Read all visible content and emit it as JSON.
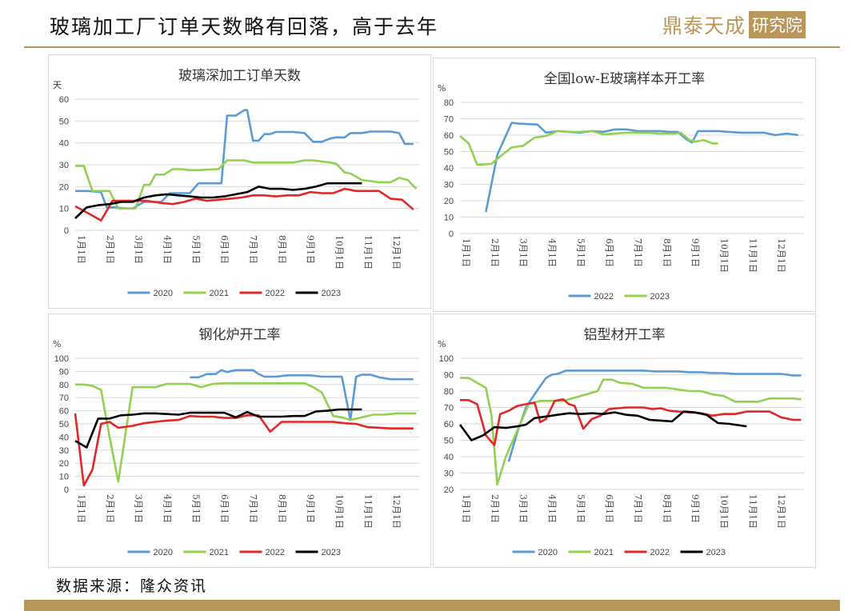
{
  "page": {
    "title": "玻璃加工厂订单天数略有回落，高于去年",
    "logo_text": "鼎泰天成",
    "logo_box": "研究院",
    "source": "数据来源：隆众资讯",
    "accent_color": "#b9975b"
  },
  "chart_data": [
    {
      "type": "line",
      "title": "玻璃深加工订单天数",
      "yunit": "天",
      "ylim": [
        0,
        60
      ],
      "yticks": [
        0,
        10,
        20,
        30,
        40,
        50,
        60
      ],
      "xmax": 12,
      "categories": [
        "1月1日",
        "2月1日",
        "3月1日",
        "4月1日",
        "5月1日",
        "6月1日",
        "7月1日",
        "8月1日",
        "9月1日",
        "10月1日",
        "11月1日",
        "12月1日"
      ],
      "grid": true,
      "legend": "bottom",
      "series": [
        {
          "name": "2020",
          "color": "#5b9bd5",
          "x": [
            0,
            0.45,
            0.9,
            1.1,
            1.4,
            1.8,
            2.0,
            2.4,
            2.8,
            3.0,
            3.3,
            3.6,
            4.0,
            4.3,
            4.6,
            5.0,
            5.1,
            5.3,
            5.6,
            5.9,
            6.0,
            6.2,
            6.4,
            6.6,
            6.8,
            7.0,
            7.3,
            7.6,
            8.0,
            8.3,
            8.6,
            8.9,
            9.1,
            9.4,
            9.6,
            10.0,
            10.3,
            10.6,
            11.0,
            11.3,
            11.5,
            11.8
          ],
          "y": [
            18,
            18,
            17.5,
            10.5,
            10.5,
            10,
            10,
            13,
            13,
            13,
            17,
            17,
            17,
            21.5,
            21.5,
            21.5,
            21.5,
            52.5,
            52.5,
            55,
            55,
            41,
            41,
            44,
            44,
            45,
            45,
            45,
            44.5,
            40.5,
            40.5,
            42,
            42.5,
            42.5,
            44.5,
            44.5,
            45.2,
            45.2,
            45.2,
            44.5,
            39.5,
            39.5
          ]
        },
        {
          "name": "2021",
          "color": "#92d050",
          "x": [
            0,
            0.3,
            0.6,
            0.9,
            1.2,
            1.5,
            1.8,
            2.1,
            2.4,
            2.6,
            2.8,
            3.1,
            3.4,
            3.7,
            4.0,
            4.3,
            4.6,
            5.0,
            5.3,
            5.6,
            5.9,
            6.2,
            6.5,
            6.8,
            7.2,
            7.6,
            8.0,
            8.3,
            8.6,
            8.9,
            9.1,
            9.4,
            9.6,
            10.0,
            10.3,
            10.6,
            11.0,
            11.3,
            11.6,
            11.9
          ],
          "y": [
            29.5,
            29.5,
            18,
            18,
            18,
            10,
            10,
            10,
            20.8,
            20.8,
            25.5,
            25.5,
            28,
            28,
            27.5,
            27.5,
            27.8,
            28,
            32,
            32,
            32,
            31,
            31,
            31,
            31,
            31,
            32,
            32,
            31.5,
            31,
            30.5,
            26.5,
            26,
            23,
            22.5,
            22,
            22,
            24,
            23,
            19
          ]
        },
        {
          "name": "2022",
          "color": "#e32726",
          "x": [
            0,
            0.5,
            0.9,
            1.3,
            1.6,
            2.0,
            2.5,
            3.0,
            3.4,
            3.8,
            4.2,
            4.6,
            5.0,
            5.4,
            5.8,
            6.2,
            6.6,
            7.0,
            7.4,
            7.8,
            8.2,
            8.6,
            9.0,
            9.4,
            9.8,
            10.2,
            10.6,
            11.0,
            11.4,
            11.8
          ],
          "y": [
            11,
            7.5,
            4.5,
            13.5,
            13.5,
            13.5,
            13.5,
            12.5,
            12,
            13,
            14.5,
            13.5,
            14,
            14.5,
            15,
            16,
            16,
            15.5,
            16,
            16,
            17.5,
            17,
            17,
            19,
            18,
            18,
            18,
            14.5,
            14,
            9.5
          ]
        },
        {
          "name": "2023",
          "color": "#000000",
          "x": [
            0,
            0.4,
            0.8,
            1.2,
            1.6,
            2.0,
            2.4,
            2.8,
            3.2,
            3.6,
            4.0,
            4.4,
            4.8,
            5.2,
            5.6,
            6.0,
            6.4,
            6.8,
            7.2,
            7.6,
            8.0,
            8.4,
            8.8,
            9.2,
            9.6,
            10.0
          ],
          "y": [
            5.5,
            10.5,
            11.5,
            12,
            13,
            13,
            15,
            16,
            16.5,
            16,
            15.5,
            15,
            15,
            15.5,
            16.5,
            17.5,
            20,
            19,
            19,
            18.5,
            19,
            20,
            21.5,
            21.5,
            21.5,
            21.5
          ]
        }
      ]
    },
    {
      "type": "line",
      "title": "全国low-E玻璃样本开工率",
      "yunit": "%",
      "ylim": [
        0,
        80
      ],
      "yticks": [
        0,
        10,
        20,
        30,
        40,
        50,
        60,
        70,
        80
      ],
      "xmax": 12,
      "categories": [
        "1月1日",
        "2月1日",
        "3月1日",
        "4月1日",
        "5月1日",
        "6月1日",
        "7月1日",
        "8月1日",
        "9月1日",
        "10月1日",
        "11月1日",
        "12月1日"
      ],
      "grid": true,
      "legend": "bottom",
      "series": [
        {
          "name": "2022",
          "color": "#5b9bd5",
          "x": [
            0.9,
            1.3,
            1.8,
            2.1,
            2.7,
            3.0,
            3.4,
            3.8,
            4.2,
            4.6,
            5.0,
            5.4,
            5.8,
            6.2,
            6.6,
            7.0,
            7.3,
            7.6,
            7.9,
            8.1,
            8.3,
            8.6,
            9.0,
            9.4,
            9.8,
            10.2,
            10.6,
            11.0,
            11.4,
            11.8
          ],
          "y": [
            13,
            48,
            67.5,
            67,
            66.5,
            61.5,
            62.5,
            62,
            61.5,
            62.5,
            62,
            63.5,
            63.5,
            62.5,
            62.5,
            62.5,
            62,
            62,
            57.5,
            55.5,
            62.5,
            62.5,
            62.5,
            62,
            61.5,
            61.5,
            61.5,
            60,
            61,
            60
          ]
        },
        {
          "name": "2023",
          "color": "#92d050",
          "x": [
            0,
            0.3,
            0.6,
            1.1,
            1.4,
            1.8,
            2.2,
            2.6,
            3.0,
            3.4,
            3.8,
            4.2,
            4.6,
            5.0,
            5.4,
            5.8,
            6.2,
            6.6,
            6.9,
            7.2,
            7.5,
            7.7,
            8.0,
            8.2,
            8.5,
            8.8,
            9.0
          ],
          "y": [
            59.5,
            55,
            42,
            42.5,
            47,
            52.5,
            53.5,
            58.5,
            59.5,
            62.5,
            62,
            62,
            62.5,
            60.5,
            61,
            61.5,
            61.5,
            61.5,
            61,
            61,
            61,
            61.5,
            57,
            56,
            57,
            55,
            55
          ]
        }
      ]
    },
    {
      "type": "line",
      "title": "钢化炉开工率",
      "yunit": "%",
      "ylim": [
        0,
        100
      ],
      "yticks": [
        0,
        10,
        20,
        30,
        40,
        50,
        60,
        70,
        80,
        90,
        100
      ],
      "xmax": 12,
      "categories": [
        "1月1日",
        "2月1日",
        "3月1日",
        "4月1日",
        "5月1日",
        "6月1日",
        "7月1日",
        "8月1日",
        "9月1日",
        "10月1日",
        "11月1日",
        "12月1日"
      ],
      "grid": true,
      "legend": "bottom",
      "series": [
        {
          "name": "2020",
          "color": "#5b9bd5",
          "x": [
            4.0,
            4.3,
            4.6,
            4.9,
            5.1,
            5.3,
            5.6,
            5.9,
            6.2,
            6.4,
            6.6,
            6.8,
            7.0,
            7.4,
            7.8,
            8.2,
            8.6,
            9.0,
            9.3,
            9.6,
            9.8,
            10.0,
            10.3,
            10.6,
            11.0,
            11.4,
            11.8
          ],
          "y": [
            85.5,
            85.5,
            88,
            88,
            91,
            89.5,
            91,
            91,
            91,
            88,
            86,
            86,
            86,
            87,
            87,
            87,
            86,
            86,
            86,
            53,
            86,
            87.5,
            87.5,
            85.5,
            84,
            84,
            84
          ]
        },
        {
          "name": "2021",
          "color": "#92d050",
          "x": [
            0,
            0.3,
            0.6,
            0.9,
            1.2,
            1.5,
            2.0,
            2.4,
            2.8,
            3.2,
            3.6,
            4.0,
            4.4,
            4.8,
            5.2,
            5.6,
            6.0,
            6.4,
            6.8,
            7.2,
            7.6,
            8.0,
            8.3,
            8.6,
            9.0,
            9.3,
            9.6,
            10.0,
            10.4,
            10.8,
            11.2,
            11.6,
            11.9
          ],
          "y": [
            80,
            80,
            79,
            76,
            40,
            6,
            78,
            78,
            78,
            80.5,
            80.5,
            80.5,
            78,
            80.5,
            81,
            81,
            81,
            81,
            81,
            81,
            81,
            81,
            78,
            74,
            56,
            55,
            53,
            55,
            57,
            57,
            58,
            58,
            58
          ]
        },
        {
          "name": "2022",
          "color": "#e32726",
          "x": [
            0,
            0.3,
            0.6,
            0.9,
            1.2,
            1.5,
            2.0,
            2.4,
            2.8,
            3.2,
            3.6,
            4.0,
            4.4,
            4.8,
            5.2,
            5.6,
            6.0,
            6.4,
            6.8,
            7.2,
            7.6,
            8.0,
            8.3,
            8.6,
            9.0,
            9.4,
            9.8,
            10.2,
            10.6,
            11.0,
            11.4,
            11.8
          ],
          "y": [
            58,
            3,
            15,
            50,
            51.5,
            47,
            48.5,
            50.5,
            51.5,
            52.5,
            53,
            56,
            55.5,
            55.5,
            54.5,
            54.5,
            56.5,
            56.5,
            44,
            51.5,
            51.5,
            51.5,
            51.5,
            51.5,
            51.5,
            50.5,
            50,
            47.5,
            47,
            46.5,
            46.5,
            46.5
          ]
        },
        {
          "name": "2023",
          "color": "#000000",
          "x": [
            0,
            0.4,
            0.8,
            1.2,
            1.6,
            2.0,
            2.4,
            2.8,
            3.2,
            3.6,
            4.0,
            4.4,
            4.8,
            5.2,
            5.6,
            6.0,
            6.4,
            6.8,
            7.2,
            7.6,
            8.0,
            8.4,
            8.8,
            9.2,
            9.6,
            10.0
          ],
          "y": [
            37,
            32,
            54,
            54,
            56.5,
            57,
            58,
            58,
            57.5,
            57,
            58.5,
            58.5,
            58.5,
            58.5,
            55,
            59,
            55.5,
            55.5,
            55.5,
            56,
            56,
            59.5,
            60,
            61,
            61,
            61
          ]
        }
      ]
    },
    {
      "type": "line",
      "title": "铝型材开工率",
      "yunit": "%",
      "ylim": [
        20,
        100
      ],
      "yticks": [
        20,
        30,
        40,
        50,
        60,
        70,
        80,
        90,
        100
      ],
      "xmax": 12,
      "categories": [
        "1月1日",
        "2月1日",
        "3月1日",
        "4月1日",
        "5月1日",
        "6月1日",
        "7月1日",
        "8月1日",
        "9月1日",
        "10月1日",
        "11月1日",
        "12月1日"
      ],
      "grid": true,
      "legend": "bottom",
      "series": [
        {
          "name": "2020",
          "color": "#5b9bd5",
          "x": [
            1.7,
            2.0,
            2.3,
            2.6,
            2.8,
            3.0,
            3.2,
            3.4,
            3.7,
            4.0,
            4.4,
            4.8,
            5.2,
            5.6,
            6.0,
            6.4,
            6.8,
            7.2,
            7.6,
            8.0,
            8.4,
            8.8,
            9.2,
            9.6,
            10.0,
            10.4,
            10.8,
            11.2,
            11.6,
            11.9
          ],
          "y": [
            37,
            55,
            70,
            78,
            83,
            88,
            90,
            90.5,
            92.5,
            92.5,
            92.5,
            92.5,
            92.5,
            92.5,
            92.5,
            92.5,
            92,
            92,
            92,
            91.5,
            91.5,
            91,
            91,
            90.5,
            90.5,
            90.5,
            90.5,
            90.5,
            89.5,
            89.5
          ]
        },
        {
          "name": "2021",
          "color": "#92d050",
          "x": [
            0,
            0.3,
            0.6,
            0.9,
            1.1,
            1.3,
            1.6,
            2.0,
            2.4,
            2.8,
            3.2,
            3.6,
            4.0,
            4.4,
            4.8,
            5.0,
            5.3,
            5.6,
            6.0,
            6.4,
            6.8,
            7.2,
            7.6,
            8.0,
            8.4,
            8.8,
            9.2,
            9.6,
            10.0,
            10.4,
            10.8,
            11.2,
            11.6,
            11.9
          ],
          "y": [
            88,
            88,
            85,
            82,
            65,
            23,
            40,
            56,
            72,
            74,
            74,
            74,
            76,
            78,
            80,
            87,
            87,
            85,
            84.5,
            82,
            82,
            82,
            81,
            80,
            80,
            78,
            77,
            73.5,
            73.5,
            73.5,
            75.5,
            75.5,
            75.5,
            75
          ]
        },
        {
          "name": "2022",
          "color": "#e32726",
          "x": [
            0,
            0.3,
            0.6,
            0.9,
            1.2,
            1.4,
            1.7,
            2.0,
            2.3,
            2.6,
            2.8,
            3.0,
            3.3,
            3.6,
            3.8,
            4.0,
            4.3,
            4.6,
            4.9,
            5.2,
            5.5,
            5.8,
            6.1,
            6.4,
            6.7,
            7.0,
            7.3,
            7.6,
            8.0,
            8.4,
            8.8,
            9.2,
            9.6,
            10.0,
            10.4,
            10.8,
            11.2,
            11.6,
            11.9
          ],
          "y": [
            74.5,
            74.5,
            72,
            53,
            47,
            66,
            68,
            71,
            72,
            73,
            61,
            63,
            74,
            75,
            72,
            71,
            57,
            63,
            65,
            69,
            69.5,
            70,
            70,
            70,
            69,
            69.5,
            68,
            67.5,
            67,
            66.5,
            65,
            66,
            66,
            67.5,
            67.5,
            67.5,
            64,
            62.5,
            62.5
          ]
        },
        {
          "name": "2023",
          "color": "#000000",
          "x": [
            0,
            0.4,
            0.8,
            1.2,
            1.6,
            2.0,
            2.3,
            2.6,
            3.0,
            3.4,
            3.8,
            4.2,
            4.6,
            5.0,
            5.4,
            5.8,
            6.2,
            6.6,
            7.0,
            7.4,
            7.8,
            8.2,
            8.6,
            9.0,
            9.4,
            9.8,
            10.0
          ],
          "y": [
            59.5,
            50,
            53,
            58,
            57.5,
            58.5,
            59.5,
            63.5,
            64.5,
            65.5,
            66.5,
            66,
            66.5,
            66,
            67,
            65.5,
            65,
            62.5,
            62,
            61.5,
            67.5,
            67,
            65.5,
            60.5,
            60,
            59,
            58.5
          ]
        }
      ]
    }
  ]
}
